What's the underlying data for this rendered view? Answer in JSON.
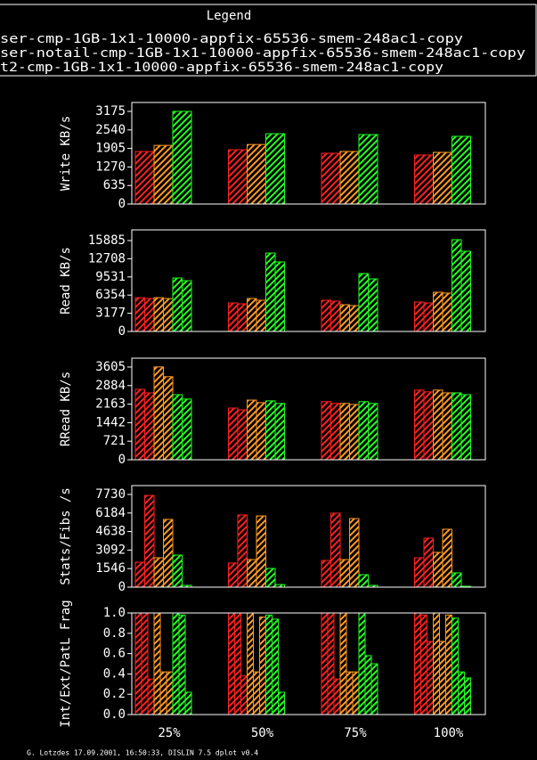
{
  "chart_data": {
    "type": "bar",
    "title": "Legend",
    "series": [
      {
        "name": "ser-cmp-1GB-1x1-10000-appfix-65536-smem-248ac1-copy",
        "color": "#ff2020"
      },
      {
        "name": "ser-notail-cmp-1GB-1x1-10000-appfix-65536-smem-248ac1-copy",
        "color": "#ff9a20"
      },
      {
        "name": "t2-cmp-1GB-1x1-10000-appfix-65536-smem-248ac1-copy",
        "color": "#20ff20"
      }
    ],
    "categories": [
      "25%",
      "50%",
      "75%",
      "100%"
    ],
    "footer": "G. Lotzdes 17.09.2001, 16:50:33, DISLIN 7.5 dplot v0.4",
    "panels": [
      {
        "ylabel": "Write KB/s",
        "ylim": [
          0,
          3480
        ],
        "yticks": [
          0,
          635,
          1270,
          1905,
          2540,
          3175
        ],
        "values": [
          [
            [
              1800
            ],
            [
              1860
            ],
            [
              1740
            ],
            [
              1680
            ]
          ],
          [
            [
              2010
            ],
            [
              2040
            ],
            [
              1800
            ],
            [
              1770
            ]
          ],
          [
            [
              3175
            ],
            [
              2410
            ],
            [
              2380
            ],
            [
              2320
            ]
          ]
        ]
      },
      {
        "ylabel": "Read KB/s",
        "ylim": [
          0,
          17750
        ],
        "yticks": [
          0,
          3177,
          6354,
          9531,
          12708,
          15885
        ],
        "values": [
          [
            [
              5900,
              5750
            ],
            [
              4980,
              4830
            ],
            [
              5450,
              5290
            ],
            [
              5140,
              4980
            ]
          ],
          [
            [
              5900,
              5750
            ],
            [
              5760,
              5450
            ],
            [
              4670,
              4520
            ],
            [
              6850,
              6700
            ]
          ],
          [
            [
              9340,
              8870
            ],
            [
              13700,
              12150
            ],
            [
              10120,
              9190
            ],
            [
              16040,
              14010
            ]
          ]
        ]
      },
      {
        "ylabel": "RRead KB/s",
        "ylim": [
          0,
          3950
        ],
        "yticks": [
          0,
          721,
          1442,
          2163,
          2884,
          3605
        ],
        "values": [
          [
            [
              2740,
              2600
            ],
            [
              2010,
              1940
            ],
            [
              2260,
              2190
            ],
            [
              2710,
              2640
            ]
          ],
          [
            [
              3610,
              3230
            ],
            [
              2320,
              2220
            ],
            [
              2190,
              2150
            ],
            [
              2710,
              2600
            ]
          ],
          [
            [
              2530,
              2360
            ],
            [
              2290,
              2190
            ],
            [
              2260,
              2190
            ],
            [
              2600,
              2530
            ]
          ]
        ]
      },
      {
        "ylabel": "Stats/Fibs /s",
        "ylim": [
          0,
          8470
        ],
        "yticks": [
          0,
          1546,
          3092,
          4638,
          6184,
          7730
        ],
        "values": [
          [
            [
              2080,
              7650
            ],
            [
              2010,
              6020
            ],
            [
              2230,
              6170
            ],
            [
              2450,
              4090
            ]
          ],
          [
            [
              2450,
              5650
            ],
            [
              2300,
              5940
            ],
            [
              2300,
              5720
            ],
            [
              2900,
              4830
            ]
          ],
          [
            [
              2670,
              150
            ],
            [
              1560,
              220
            ],
            [
              1040,
              150
            ],
            [
              1190,
              70
            ]
          ]
        ]
      },
      {
        "ylabel": "Int/Ext/PatL Frag",
        "ylim": [
          0,
          1
        ],
        "yticks": [
          {
            "value": 0,
            "label": "0.0"
          },
          {
            "value": 0.2,
            "label": "0.2"
          },
          {
            "value": 0.4,
            "label": "0.4"
          },
          {
            "value": 0.6,
            "label": "0.6"
          },
          {
            "value": 0.8,
            "label": "0.8"
          },
          {
            "value": 1,
            "label": "1.0"
          }
        ],
        "values": [
          [
            [
              1,
              1,
              0.35
            ],
            [
              1,
              1,
              0.38
            ],
            [
              1,
              1,
              0.35
            ],
            [
              1,
              0.98,
              0.72
            ]
          ],
          [
            [
              1,
              0.42,
              0.42
            ],
            [
              1,
              0.42,
              0.96
            ],
            [
              1,
              0.42,
              0.42
            ],
            [
              1,
              0.72,
              0.98
            ]
          ],
          [
            [
              1,
              0.98,
              0.22
            ],
            [
              0.98,
              0.94,
              0.22
            ],
            [
              1,
              0.58,
              0.5
            ],
            [
              0.95,
              0.42,
              0.36
            ]
          ]
        ]
      }
    ]
  }
}
